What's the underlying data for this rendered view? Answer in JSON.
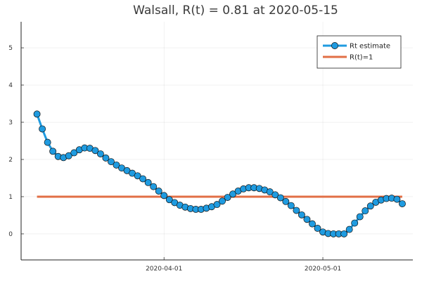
{
  "chart_data": {
    "type": "line",
    "title": "Walsall, R(t) = 0.81 at 2020-05-15",
    "xlabel": "",
    "ylabel": "",
    "x_start": "2020-03-08",
    "x_range": [
      "2020-03-05",
      "2020-05-18"
    ],
    "ylim": [
      -0.7,
      5.7
    ],
    "x_ticks": [
      {
        "date": "2020-04-01",
        "label": "2020-04-01"
      },
      {
        "date": "2020-05-01",
        "label": "2020-05-01"
      }
    ],
    "y_ticks": [
      0,
      1,
      2,
      3,
      4,
      5
    ],
    "grid": true,
    "legend_position": "top-right",
    "series": [
      {
        "name": "Rt estimate",
        "color": "#1f9be0",
        "marker": "circle",
        "values": [
          3.22,
          2.82,
          2.46,
          2.22,
          2.08,
          2.05,
          2.1,
          2.18,
          2.26,
          2.31,
          2.3,
          2.24,
          2.15,
          2.04,
          1.94,
          1.85,
          1.77,
          1.7,
          1.63,
          1.56,
          1.48,
          1.38,
          1.27,
          1.15,
          1.03,
          0.92,
          0.84,
          0.77,
          0.72,
          0.68,
          0.66,
          0.66,
          0.69,
          0.73,
          0.79,
          0.88,
          0.98,
          1.07,
          1.15,
          1.21,
          1.24,
          1.24,
          1.22,
          1.18,
          1.13,
          1.05,
          0.97,
          0.87,
          0.76,
          0.63,
          0.51,
          0.39,
          0.27,
          0.15,
          0.05,
          0.01,
          0.0,
          0.0,
          0.0,
          0.12,
          0.29,
          0.46,
          0.62,
          0.75,
          0.85,
          0.91,
          0.95,
          0.96,
          0.93,
          0.81
        ]
      },
      {
        "name": "R(t)=1",
        "color": "#e26f46",
        "marker": "none",
        "values": [
          1.0,
          1.0
        ]
      }
    ]
  }
}
